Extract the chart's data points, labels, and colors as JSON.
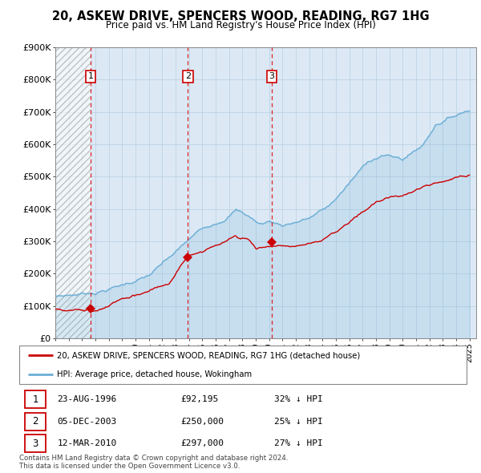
{
  "title": "20, ASKEW DRIVE, SPENCERS WOOD, READING, RG7 1HG",
  "subtitle": "Price paid vs. HM Land Registry's House Price Index (HPI)",
  "xlim": [
    1994.0,
    2025.5
  ],
  "ylim": [
    0,
    900000
  ],
  "yticks": [
    0,
    100000,
    200000,
    300000,
    400000,
    500000,
    600000,
    700000,
    800000,
    900000
  ],
  "ytick_labels": [
    "£0",
    "£100K",
    "£200K",
    "£300K",
    "£400K",
    "£500K",
    "£600K",
    "£700K",
    "£800K",
    "£900K"
  ],
  "hpi_color": "#6aaed6",
  "price_color": "#cc0000",
  "dashed_line_color": "#dd0000",
  "background_color": "#dce9f5",
  "grid_color": "#b8cfe0",
  "hatch_region_end": 1996.646,
  "sale_points": [
    {
      "year": 1996.646,
      "price": 92195,
      "label": "1"
    },
    {
      "year": 2003.923,
      "price": 250000,
      "label": "2"
    },
    {
      "year": 2010.193,
      "price": 297000,
      "label": "3"
    }
  ],
  "legend_entries": [
    "20, ASKEW DRIVE, SPENCERS WOOD, READING, RG7 1HG (detached house)",
    "HPI: Average price, detached house, Wokingham"
  ],
  "table_rows": [
    {
      "num": "1",
      "date": "23-AUG-1996",
      "price": "£92,195",
      "hpi": "32% ↓ HPI"
    },
    {
      "num": "2",
      "date": "05-DEC-2003",
      "price": "£250,000",
      "hpi": "25% ↓ HPI"
    },
    {
      "num": "3",
      "date": "12-MAR-2010",
      "price": "£297,000",
      "hpi": "27% ↓ HPI"
    }
  ],
  "footer": "Contains HM Land Registry data © Crown copyright and database right 2024.\nThis data is licensed under the Open Government Licence v3.0.",
  "xticks": [
    1994,
    1995,
    1996,
    1997,
    1998,
    1999,
    2000,
    2001,
    2002,
    2003,
    2004,
    2005,
    2006,
    2007,
    2008,
    2009,
    2010,
    2011,
    2012,
    2013,
    2014,
    2015,
    2016,
    2017,
    2018,
    2019,
    2020,
    2021,
    2022,
    2023,
    2024,
    2025
  ]
}
